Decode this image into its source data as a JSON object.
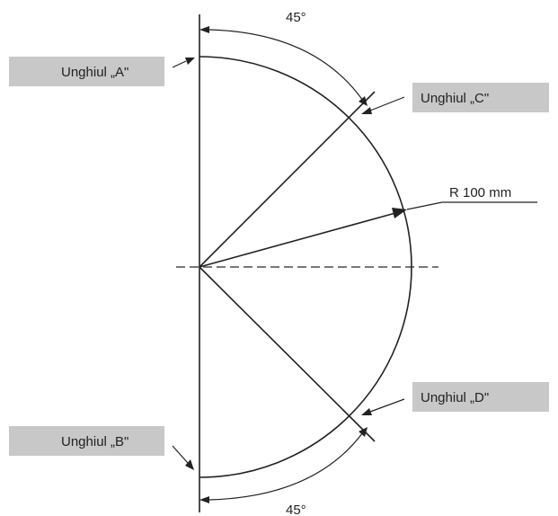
{
  "labels": {
    "angle_a": "Unghiul „A\"",
    "angle_b": "Unghiul „B\"",
    "angle_c": "Unghiul „C\"",
    "angle_d": "Unghiul „D\"",
    "radius": "R 100 mm",
    "top_angle": "45°",
    "bottom_angle": "45°"
  },
  "colors": {
    "label_background": "#c8c8c8",
    "line": "#222222",
    "centerline": "#666666"
  }
}
